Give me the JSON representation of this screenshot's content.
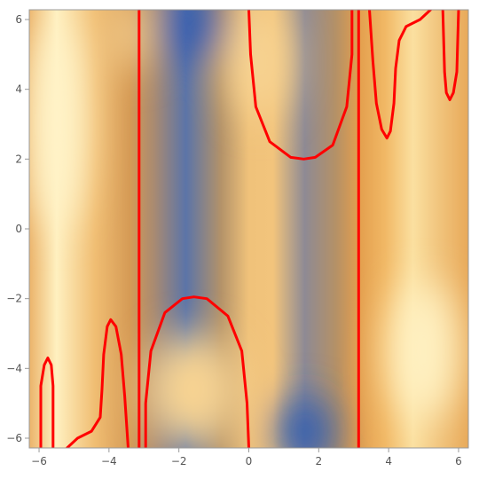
{
  "chart_data": {
    "type": "heatmap",
    "title": "",
    "xlabel": "",
    "ylabel": "",
    "xlim": [
      -6.28,
      6.28
    ],
    "ylim": [
      -6.28,
      6.28
    ],
    "x_ticks": [
      -6,
      -4,
      -2,
      0,
      2,
      4,
      6
    ],
    "x_tick_labels": [
      "−6",
      "−4",
      "−2",
      "0",
      "2",
      "4",
      "6"
    ],
    "y_ticks": [
      -6,
      -4,
      -2,
      0,
      2,
      4,
      6
    ],
    "y_tick_labels": [
      "−6",
      "−4",
      "−2",
      "0",
      "2",
      "4",
      "6"
    ],
    "colors": {
      "light": "#fff4c8",
      "mid": "#e9a24a",
      "dark": "#3560b0",
      "gray": "#8a8a9a",
      "contour": "#ff0000"
    },
    "background_columns": [
      {
        "x": -6.28,
        "color": "#ebb36a"
      },
      {
        "x": -5.5,
        "color": "#fff0c0"
      },
      {
        "x": -4.4,
        "color": "#f0bd72"
      },
      {
        "x": -3.4,
        "color": "#d59a55"
      },
      {
        "x": -2.7,
        "color": "#a88a72"
      },
      {
        "x": -1.8,
        "color": "#5b74a8"
      },
      {
        "x": -0.8,
        "color": "#b39269"
      },
      {
        "x": 0.0,
        "color": "#f0c27a"
      },
      {
        "x": 0.7,
        "color": "#f2c47c"
      },
      {
        "x": 1.6,
        "color": "#8e8a94"
      },
      {
        "x": 2.5,
        "color": "#b59166"
      },
      {
        "x": 3.14,
        "color": "#e39e4d"
      },
      {
        "x": 3.9,
        "color": "#f1b865"
      },
      {
        "x": 4.7,
        "color": "#fbe0a0"
      },
      {
        "x": 5.5,
        "color": "#f0c27a"
      },
      {
        "x": 6.28,
        "color": "#e8a959"
      }
    ],
    "background_spots": [
      {
        "x": -1.6,
        "y": 5.8,
        "rx": 0.8,
        "ry": 1.0,
        "color": "#2f5bb0"
      },
      {
        "x": 1.6,
        "y": -5.8,
        "rx": 0.8,
        "ry": 1.0,
        "color": "#2f5bb0"
      },
      {
        "x": -3.4,
        "y": 5.6,
        "rx": 0.5,
        "ry": 1.1,
        "color": "#f6d394"
      },
      {
        "x": 0.3,
        "y": 4.8,
        "rx": 0.9,
        "ry": 1.6,
        "color": "#f7d392"
      },
      {
        "x": -1.6,
        "y": -4.6,
        "rx": 1.4,
        "ry": 1.6,
        "color": "#f7d392"
      },
      {
        "x": 5.0,
        "y": -3.5,
        "rx": 1.0,
        "ry": 2.0,
        "color": "#fff1c2"
      },
      {
        "x": -5.5,
        "y": 3.0,
        "rx": 0.8,
        "ry": 3.0,
        "color": "#fff3c8"
      }
    ],
    "series": [
      {
        "points": [
          [
            -3.14,
            -6.28
          ],
          [
            -3.14,
            6.28
          ]
        ]
      },
      {
        "points": [
          [
            3.14,
            -6.28
          ],
          [
            3.14,
            6.28
          ]
        ]
      },
      {
        "points": [
          [
            -5.95,
            -6.28
          ],
          [
            -5.95,
            -4.5
          ],
          [
            -5.85,
            -3.9
          ],
          [
            -5.75,
            -3.7
          ],
          [
            -5.65,
            -3.9
          ],
          [
            -5.6,
            -4.5
          ],
          [
            -5.6,
            -6.28
          ]
        ]
      },
      {
        "points": [
          [
            -5.2,
            -6.28
          ],
          [
            -4.9,
            -6.0
          ],
          [
            -4.5,
            -5.8
          ],
          [
            -4.25,
            -5.4
          ],
          [
            -4.2,
            -4.6
          ],
          [
            -4.15,
            -3.6
          ],
          [
            -4.05,
            -2.8
          ],
          [
            -3.95,
            -2.6
          ],
          [
            -3.8,
            -2.8
          ],
          [
            -3.65,
            -3.6
          ],
          [
            -3.55,
            -4.8
          ],
          [
            -3.45,
            -6.28
          ]
        ]
      },
      {
        "points": [
          [
            -2.95,
            -6.28
          ],
          [
            -2.95,
            -5.0
          ],
          [
            -2.8,
            -3.5
          ],
          [
            -2.4,
            -2.4
          ],
          [
            -1.9,
            -2.0
          ],
          [
            -1.57,
            -1.95
          ],
          [
            -1.2,
            -2.0
          ],
          [
            -0.6,
            -2.5
          ],
          [
            -0.2,
            -3.5
          ],
          [
            -0.05,
            -5.0
          ],
          [
            0.0,
            -6.28
          ]
        ]
      },
      {
        "points": [
          [
            0.0,
            6.28
          ],
          [
            0.05,
            5.0
          ],
          [
            0.2,
            3.5
          ],
          [
            0.6,
            2.5
          ],
          [
            1.2,
            2.05
          ],
          [
            1.57,
            2.0
          ],
          [
            1.9,
            2.05
          ],
          [
            2.4,
            2.4
          ],
          [
            2.8,
            3.5
          ],
          [
            2.95,
            5.0
          ],
          [
            2.95,
            6.28
          ]
        ]
      },
      {
        "points": [
          [
            3.45,
            6.28
          ],
          [
            3.55,
            4.8
          ],
          [
            3.65,
            3.6
          ],
          [
            3.8,
            2.85
          ],
          [
            3.95,
            2.6
          ],
          [
            4.05,
            2.8
          ],
          [
            4.15,
            3.6
          ],
          [
            4.2,
            4.6
          ],
          [
            4.3,
            5.4
          ],
          [
            4.5,
            5.8
          ],
          [
            4.9,
            6.0
          ],
          [
            5.2,
            6.28
          ]
        ]
      },
      {
        "points": [
          [
            5.55,
            6.28
          ],
          [
            5.6,
            4.5
          ],
          [
            5.65,
            3.9
          ],
          [
            5.75,
            3.7
          ],
          [
            5.85,
            3.9
          ],
          [
            5.95,
            4.5
          ],
          [
            6.0,
            6.28
          ]
        ]
      }
    ]
  }
}
